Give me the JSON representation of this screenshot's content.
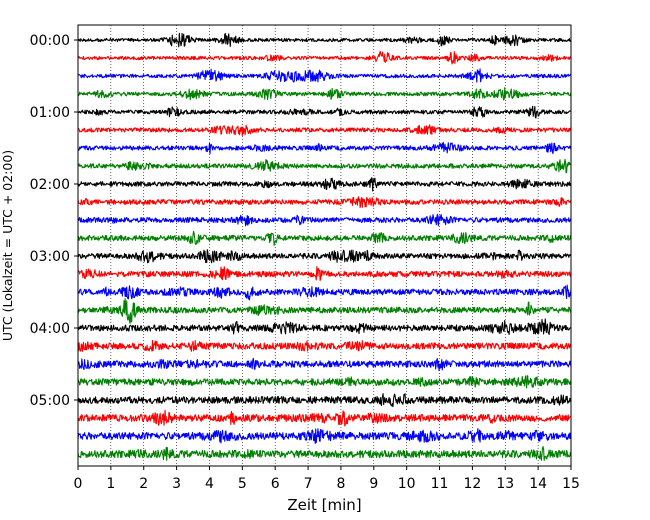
{
  "chart_data": {
    "type": "line",
    "title": "",
    "xlabel": "Zeit  [min]",
    "ylabel": "UTC (Lokalzeit = UTC + 02:00)",
    "xlim": [
      0,
      15
    ],
    "x_ticks": [
      "0",
      "1",
      "2",
      "3",
      "4",
      "5",
      "6",
      "7",
      "8",
      "9",
      "10",
      "11",
      "12",
      "13",
      "14",
      "15"
    ],
    "y_ticks": [
      "00:00",
      "01:00",
      "02:00",
      "03:00",
      "04:00",
      "05:00"
    ],
    "grid": "vertical dotted at each minute",
    "trace_count": 24,
    "trace_interval_minutes": 15,
    "color_cycle": [
      "#000000",
      "#ff0000",
      "#0000ff",
      "#008000"
    ]
  }
}
